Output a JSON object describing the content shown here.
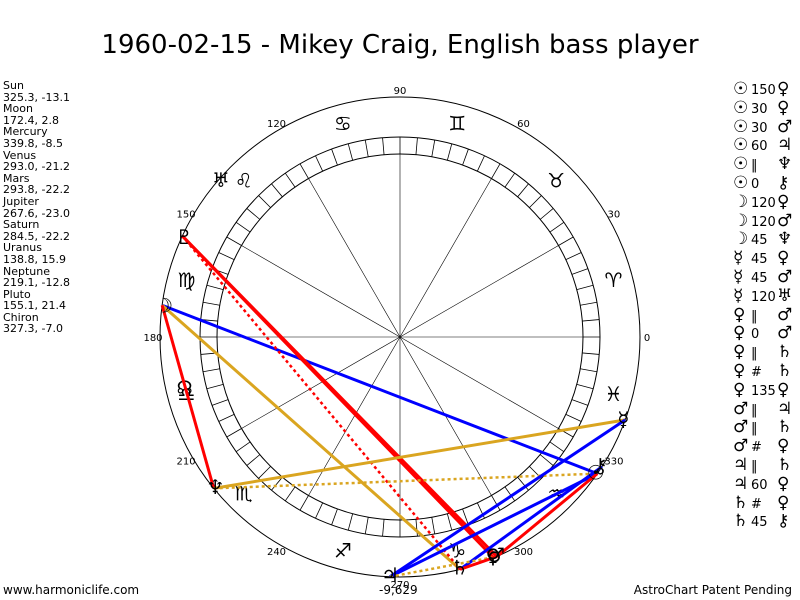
{
  "title": "1960-02-15 - Mikey Craig, English bass player",
  "planets": [
    {
      "name": "Sun",
      "glyph": "☉",
      "pos": "325.3, -13.1",
      "lon": 325.3
    },
    {
      "name": "Moon",
      "glyph": "☽",
      "pos": "172.4, 2.8",
      "lon": 172.4
    },
    {
      "name": "Mercury",
      "glyph": "☿",
      "pos": "339.8, -8.5",
      "lon": 339.8
    },
    {
      "name": "Venus",
      "glyph": "♀",
      "pos": "293.0, -21.2",
      "lon": 293.0
    },
    {
      "name": "Mars",
      "glyph": "♂",
      "pos": "293.8, -22.2",
      "lon": 293.8
    },
    {
      "name": "Jupiter",
      "glyph": "♃",
      "pos": "267.6, -23.0",
      "lon": 267.6
    },
    {
      "name": "Saturn",
      "glyph": "♄",
      "pos": "284.5, -22.2",
      "lon": 284.5
    },
    {
      "name": "Uranus",
      "glyph": "♅",
      "pos": "138.8, 15.9",
      "lon": 138.8
    },
    {
      "name": "Neptune",
      "glyph": "♆",
      "pos": "219.1, -12.8",
      "lon": 219.1
    },
    {
      "name": "Pluto",
      "glyph": "♇",
      "pos": "155.1, 21.4",
      "lon": 155.1
    },
    {
      "name": "Chiron",
      "glyph": "⚷",
      "pos": "327.3, -7.0",
      "lon": 327.3
    }
  ],
  "degree_labels": [
    "0",
    "30",
    "60",
    "90",
    "120",
    "150",
    "180",
    "210",
    "240",
    "270",
    "300",
    "330"
  ],
  "zodiac": [
    "♈",
    "♉",
    "♊",
    "♋",
    "♌",
    "♍",
    "♎",
    "♏",
    "♐",
    "♑",
    "♒",
    "♓"
  ],
  "node_glyph": "☊",
  "node_lon": 193,
  "aspect_list": [
    {
      "a": "☉",
      "v": "150",
      "b": "♀"
    },
    {
      "a": "☉",
      "v": "30",
      "b": "♀"
    },
    {
      "a": "☉",
      "v": "30",
      "b": "♂"
    },
    {
      "a": "☉",
      "v": "60",
      "b": "♃"
    },
    {
      "a": "☉",
      "v": "‖",
      "b": "♆"
    },
    {
      "a": "☉",
      "v": "0",
      "b": "⚷"
    },
    {
      "a": "☽",
      "v": "120",
      "b": "♀"
    },
    {
      "a": "☽",
      "v": "120",
      "b": "♂"
    },
    {
      "a": "☽",
      "v": "45",
      "b": "♆"
    },
    {
      "a": "☿",
      "v": "45",
      "b": "♀"
    },
    {
      "a": "☿",
      "v": "45",
      "b": "♂"
    },
    {
      "a": "☿",
      "v": "120",
      "b": "♅"
    },
    {
      "a": "♀",
      "v": "‖",
      "b": "♂"
    },
    {
      "a": "♀",
      "v": "0",
      "b": "♂"
    },
    {
      "a": "♀",
      "v": "‖",
      "b": "♄"
    },
    {
      "a": "♀",
      "v": "#",
      "b": "♄"
    },
    {
      "a": "♀",
      "v": "135",
      "b": "♀"
    },
    {
      "a": "♂",
      "v": "‖",
      "b": "♃"
    },
    {
      "a": "♂",
      "v": "‖",
      "b": "♄"
    },
    {
      "a": "♂",
      "v": "#",
      "b": "♀"
    },
    {
      "a": "♃",
      "v": "‖",
      "b": "♄"
    },
    {
      "a": "♃",
      "v": "60",
      "b": "♀"
    },
    {
      "a": "♄",
      "v": "#",
      "b": "♀"
    },
    {
      "a": "♄",
      "v": "45",
      "b": "⚷"
    }
  ],
  "aspect_lines": [
    {
      "p1": "Moon",
      "p2": "Sun",
      "color": "#0000ff",
      "style": "solid"
    },
    {
      "p1": "Moon",
      "p2": "Saturn",
      "color": "#daa520",
      "style": "solid"
    },
    {
      "p1": "Moon",
      "p2": "Neptune",
      "color": "#ff0000",
      "style": "solid"
    },
    {
      "p1": "Pluto",
      "p2": "Venus",
      "color": "#ff0000",
      "style": "solid"
    },
    {
      "p1": "Pluto",
      "p2": "Saturn",
      "color": "#ff0000",
      "style": "dotted"
    },
    {
      "p1": "Pluto",
      "p2": "Mars",
      "color": "#ff0000",
      "style": "solid"
    },
    {
      "p1": "Neptune",
      "p2": "Mercury",
      "color": "#daa520",
      "style": "solid"
    },
    {
      "p1": "Neptune",
      "p2": "Sun",
      "color": "#daa520",
      "style": "dotted"
    },
    {
      "p1": "Mercury",
      "p2": "Jupiter",
      "color": "#0000ff",
      "style": "solid"
    },
    {
      "p1": "Sun",
      "p2": "Jupiter",
      "color": "#0000ff",
      "style": "solid"
    },
    {
      "p1": "Sun",
      "p2": "Mars",
      "color": "#ff0000",
      "style": "solid"
    },
    {
      "p1": "Chiron",
      "p2": "Saturn",
      "color": "#0000ff",
      "style": "solid"
    },
    {
      "p1": "Jupiter",
      "p2": "Mars",
      "color": "#daa520",
      "style": "dotted"
    },
    {
      "p1": "Saturn",
      "p2": "Mars",
      "color": "#ff0000",
      "style": "solid"
    }
  ],
  "coord_label": "-9,629",
  "footer_left": "www.harmoniclife.com",
  "footer_right": "AstroChart Patent Pending"
}
